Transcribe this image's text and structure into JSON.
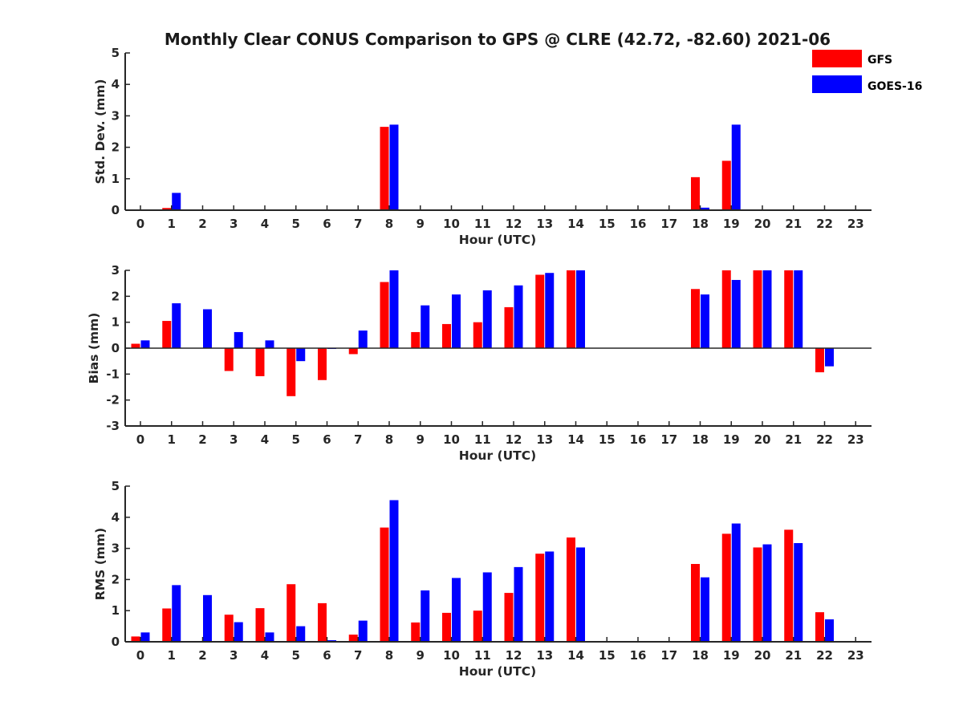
{
  "title": "Monthly Clear CONUS Comparison to GPS @ CLRE (42.72, -82.60) 2021-06",
  "legend": [
    {
      "name": "GFS",
      "color": "#ff0000"
    },
    {
      "name": "GOES-16",
      "color": "#0000ff"
    }
  ],
  "chart_data": [
    {
      "type": "bar",
      "ylabel": "Std. Dev. (mm)",
      "xlabel": "Hour (UTC)",
      "ylim": [
        0,
        5
      ],
      "yticks": [
        0,
        1,
        2,
        3,
        4,
        5
      ],
      "categories": [
        "0",
        "1",
        "2",
        "3",
        "4",
        "5",
        "6",
        "7",
        "8",
        "9",
        "10",
        "11",
        "12",
        "13",
        "14",
        "15",
        "16",
        "17",
        "18",
        "19",
        "20",
        "21",
        "22",
        "23"
      ],
      "series": [
        {
          "name": "GFS",
          "color": "#ff0000",
          "values": [
            0,
            0.07,
            0,
            0,
            0,
            0,
            0,
            0,
            2.65,
            0,
            0,
            0,
            0,
            0,
            0,
            0,
            0,
            0,
            1.05,
            1.57,
            0,
            0,
            0,
            0
          ]
        },
        {
          "name": "GOES-16",
          "color": "#0000ff",
          "values": [
            0,
            0.55,
            0,
            0,
            0,
            0,
            0,
            0,
            2.72,
            0,
            0,
            0,
            0,
            0,
            0,
            0,
            0,
            0,
            0.08,
            2.72,
            0,
            0,
            0,
            0
          ]
        }
      ]
    },
    {
      "type": "bar",
      "ylabel": "Bias (mm)",
      "xlabel": "Hour (UTC)",
      "ylim": [
        -3,
        3
      ],
      "yticks": [
        -3,
        -2,
        -1,
        0,
        1,
        2,
        3
      ],
      "categories": [
        "0",
        "1",
        "2",
        "3",
        "4",
        "5",
        "6",
        "7",
        "8",
        "9",
        "10",
        "11",
        "12",
        "13",
        "14",
        "15",
        "16",
        "17",
        "18",
        "19",
        "20",
        "21",
        "22",
        "23"
      ],
      "series": [
        {
          "name": "GFS",
          "color": "#ff0000",
          "values": [
            0.17,
            1.05,
            0,
            -0.88,
            -1.08,
            -1.85,
            -1.23,
            -0.23,
            2.55,
            0.62,
            0.93,
            1.0,
            1.58,
            2.83,
            3.0,
            0,
            0,
            0,
            2.28,
            3.0,
            3.0,
            3.0,
            -0.93,
            0
          ]
        },
        {
          "name": "GOES-16",
          "color": "#0000ff",
          "values": [
            0.3,
            1.73,
            1.5,
            0.62,
            0.3,
            -0.5,
            -0.03,
            0.68,
            3.0,
            1.65,
            2.07,
            2.23,
            2.42,
            2.9,
            3.0,
            0,
            0,
            0,
            2.07,
            2.63,
            3.0,
            3.0,
            -0.7,
            0
          ]
        }
      ]
    },
    {
      "type": "bar",
      "ylabel": "RMS (mm)",
      "xlabel": "Hour (UTC)",
      "ylim": [
        0,
        5
      ],
      "yticks": [
        0,
        1,
        2,
        3,
        4,
        5
      ],
      "categories": [
        "0",
        "1",
        "2",
        "3",
        "4",
        "5",
        "6",
        "7",
        "8",
        "9",
        "10",
        "11",
        "12",
        "13",
        "14",
        "15",
        "16",
        "17",
        "18",
        "19",
        "20",
        "21",
        "22",
        "23"
      ],
      "series": [
        {
          "name": "GFS",
          "color": "#ff0000",
          "values": [
            0.17,
            1.07,
            0,
            0.87,
            1.08,
            1.85,
            1.24,
            0.23,
            3.67,
            0.62,
            0.93,
            1.0,
            1.57,
            2.83,
            3.35,
            0,
            0,
            0,
            2.5,
            3.47,
            3.03,
            3.6,
            0.95,
            0
          ]
        },
        {
          "name": "GOES-16",
          "color": "#0000ff",
          "values": [
            0.3,
            1.82,
            1.5,
            0.63,
            0.3,
            0.5,
            0.05,
            0.68,
            4.55,
            1.65,
            2.05,
            2.23,
            2.4,
            2.9,
            3.03,
            0,
            0,
            0,
            2.07,
            3.8,
            3.13,
            3.17,
            0.72,
            0
          ]
        }
      ]
    }
  ]
}
